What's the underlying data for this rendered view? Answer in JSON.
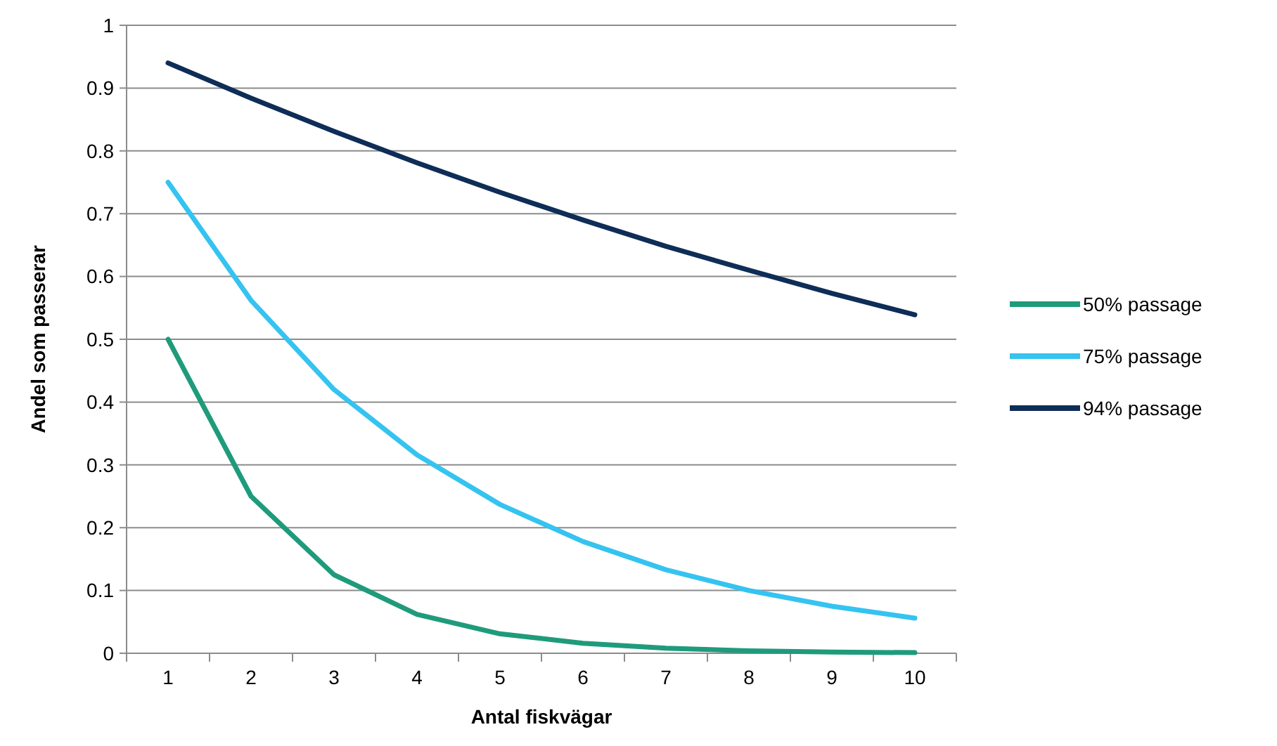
{
  "chart_data": {
    "type": "line",
    "xlabel": "Antal fiskvägar",
    "ylabel": "Andel som passerar",
    "categories": [
      "1",
      "2",
      "3",
      "4",
      "5",
      "6",
      "7",
      "8",
      "9",
      "10"
    ],
    "series": [
      {
        "name": "50% passage",
        "color": "#1f9b7c",
        "values": [
          0.5,
          0.25,
          0.125,
          0.062,
          0.031,
          0.016,
          0.008,
          0.004,
          0.002,
          0.001
        ]
      },
      {
        "name": "75% passage",
        "color": "#35c3f0",
        "values": [
          0.75,
          0.562,
          0.42,
          0.316,
          0.237,
          0.178,
          0.133,
          0.1,
          0.075,
          0.056
        ]
      },
      {
        "name": "94% passage",
        "color": "#0e2d57",
        "values": [
          0.94,
          0.884,
          0.831,
          0.781,
          0.734,
          0.69,
          0.648,
          0.61,
          0.573,
          0.539
        ]
      }
    ],
    "ylim": [
      0,
      1
    ],
    "yticks": [
      0,
      0.1,
      0.2,
      0.3,
      0.4,
      0.5,
      0.6,
      0.7,
      0.8,
      0.9,
      1
    ],
    "grid": "y",
    "legend": "right",
    "marker": "none",
    "line_style": "solid"
  }
}
